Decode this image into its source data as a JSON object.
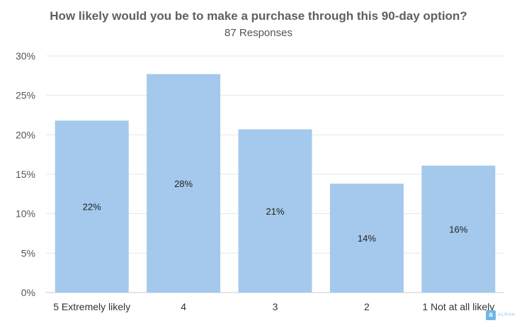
{
  "chart_data": {
    "type": "bar",
    "title": "How likely would you be to make a purchase through this 90-day option?",
    "subtitle": "87 Responses",
    "categories": [
      "5 Extremely likely",
      "4",
      "3",
      "2",
      "1 Not at all likely"
    ],
    "values": [
      22,
      28,
      21,
      14,
      16
    ],
    "data_labels": [
      "22%",
      "28%",
      "21%",
      "14%",
      "16%"
    ],
    "ylim": [
      0,
      30
    ],
    "yticks": [
      0,
      5,
      10,
      15,
      20,
      25,
      30
    ],
    "ytick_labels": [
      "0%",
      "5%",
      "10%",
      "15%",
      "20%",
      "25%",
      "30%"
    ],
    "bar_heights": [
      21.8,
      27.7,
      20.7,
      13.8,
      16.1
    ],
    "grid": true,
    "bar_color": "#a4c9ec",
    "grid_color": "#e6e6e6"
  },
  "branding": {
    "icon_letter": "a",
    "text": "ALPHA",
    "color": "#6fb6e6"
  }
}
